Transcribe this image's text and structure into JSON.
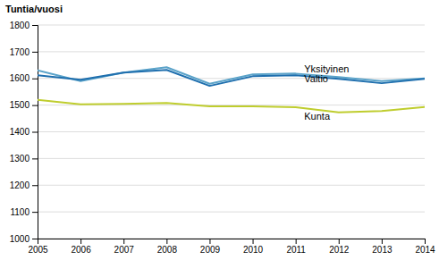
{
  "chart_data": {
    "type": "line",
    "ylabel": "Tuntia/vuosi",
    "x": [
      2005,
      2006,
      2007,
      2008,
      2009,
      2010,
      2011,
      2012,
      2013,
      2014
    ],
    "series": [
      {
        "color": "#5BA3C9",
        "values": [
          1630,
          1590,
          1622,
          1642,
          1580,
          1615,
          1618,
          1605,
          1590,
          1600
        ]
      },
      {
        "color": "#1F6FAE",
        "values": [
          1612,
          1595,
          1622,
          1632,
          1572,
          1608,
          1612,
          1598,
          1582,
          1598
        ]
      },
      {
        "color": "#BFCD2E",
        "values": [
          1520,
          1503,
          1505,
          1508,
          1495,
          1495,
          1492,
          1473,
          1478,
          1493
        ]
      }
    ],
    "annotations": [
      {
        "text": "Yksityinen",
        "x": 2011.2,
        "y": 1632
      },
      {
        "text": "Valtio",
        "x": 2011.2,
        "y": 1595
      },
      {
        "text": "Kunta",
        "x": 2011.2,
        "y": 1455
      }
    ],
    "xlim": [
      2005,
      2014
    ],
    "xticks": [
      2005,
      2006,
      2007,
      2008,
      2009,
      2010,
      2011,
      2012,
      2013,
      2014
    ],
    "ylim": [
      1000,
      1800
    ],
    "yticks": [
      1000,
      1100,
      1200,
      1300,
      1400,
      1500,
      1600,
      1700,
      1800
    ],
    "grid": true
  }
}
